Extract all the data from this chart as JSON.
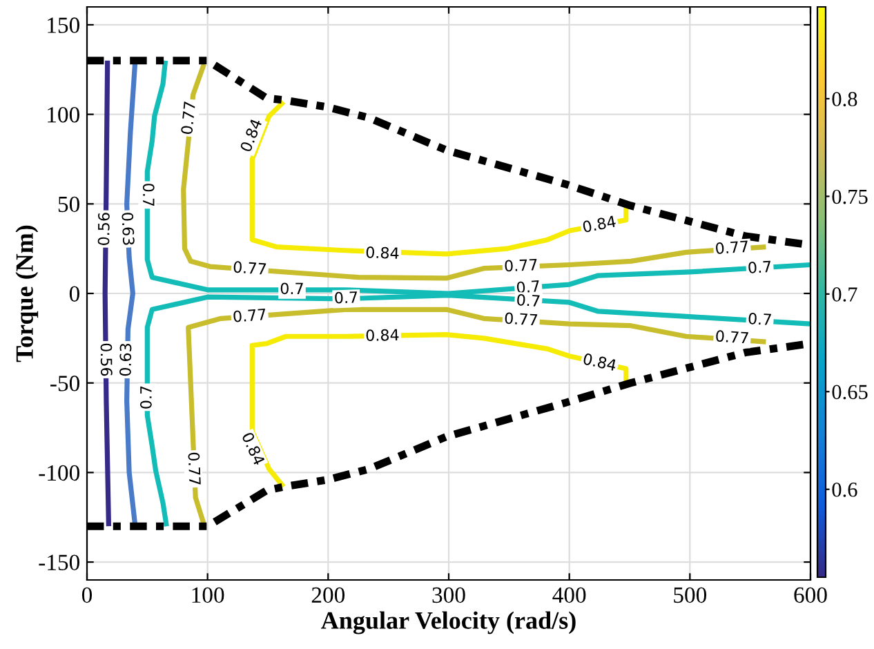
{
  "chart_data": {
    "type": "line",
    "xlabel": "Angular Velocity (rad/s)",
    "ylabel": "Torque (Nm)",
    "xlim": [
      0,
      600
    ],
    "ylim": [
      -160,
      160
    ],
    "xticks": [
      0,
      100,
      200,
      300,
      400,
      500,
      600
    ],
    "yticks": [
      -150,
      -100,
      -50,
      0,
      50,
      100,
      150
    ],
    "grid": true,
    "clim": [
      0.555,
      0.847
    ],
    "cticks": [
      0.6,
      0.65,
      0.7,
      0.75,
      0.8
    ],
    "series": [
      {
        "color": "#352a87",
        "x": [
          17,
          16,
          15,
          16,
          18
        ],
        "values": [
          130,
          60,
          0,
          -60,
          -130
        ]
      },
      {
        "color": "#4a7bc9",
        "x": [
          40,
          36,
          33,
          35,
          38,
          34,
          33,
          35,
          40
        ],
        "values": [
          130,
          90,
          50,
          20,
          0,
          -20,
          -60,
          -100,
          -130
        ]
      },
      {
        "color": "#13bcb7",
        "x": [
          65,
          63,
          56,
          54,
          50,
          50,
          54,
          100,
          214,
          300,
          400,
          424,
          500,
          600
        ],
        "values": [
          130,
          117,
          99,
          85,
          68,
          19,
          9,
          2,
          2,
          0,
          5,
          10,
          12,
          16
        ]
      },
      {
        "color": "#13bcb7",
        "x": [
          66,
          63,
          57,
          54,
          50,
          50,
          54,
          100,
          214,
          300,
          400,
          424,
          500,
          600
        ],
        "values": [
          -130,
          -117,
          -99,
          -85,
          -68,
          -19,
          -9,
          -2,
          -3,
          -1,
          -5,
          -10,
          -13,
          -17
        ]
      },
      {
        "color": "#c8bd2c",
        "x": [
          97,
          88,
          80,
          81,
          86,
          102,
          225,
          298,
          329,
          400,
          451,
          497,
          563
        ],
        "values": [
          128,
          111,
          58,
          25,
          18,
          15,
          9,
          8.5,
          14,
          16,
          18,
          23,
          26
        ]
      },
      {
        "color": "#c8bd2c",
        "x": [
          97,
          90,
          84,
          111,
          214,
          298,
          329,
          400,
          451,
          497,
          563
        ],
        "values": [
          -129,
          -114,
          -19,
          -14,
          -9,
          -9,
          -14,
          -17,
          -18,
          -24,
          -27
        ]
      },
      {
        "color": "#f5eb05",
        "x": [
          163,
          151,
          137,
          137,
          157,
          214,
          298,
          348,
          382,
          400,
          447,
          447
        ],
        "values": [
          107,
          99,
          75,
          30,
          26,
          24,
          22,
          25,
          30,
          35,
          41,
          49
        ]
      },
      {
        "color": "#f5eb05",
        "x": [
          163,
          151,
          137,
          137,
          149,
          165,
          214,
          298,
          329,
          382,
          400,
          447,
          447
        ],
        "values": [
          -108,
          -98,
          -77,
          -29,
          -28,
          -24,
          -24,
          -23,
          -25,
          -31,
          -35,
          -42,
          -50
        ]
      },
      {
        "color": "#000000",
        "line_style": "dashed",
        "x": [
          0,
          100,
          149,
          163,
          200,
          234,
          298,
          397,
          451,
          546,
          600
        ],
        "values": [
          130,
          130,
          109,
          108,
          104,
          98,
          80,
          61,
          49,
          32,
          27
        ]
      },
      {
        "color": "#000000",
        "line_style": "dashed",
        "x": [
          0,
          100,
          149,
          163,
          200,
          234,
          298,
          397,
          451,
          546,
          600
        ],
        "values": [
          -130,
          -130,
          -110,
          -108,
          -104,
          -98,
          -80,
          -61,
          -50,
          -33,
          -28
        ]
      }
    ],
    "annotations": [
      {
        "text": "0.56",
        "x": 15,
        "y": 36
      },
      {
        "text": "0.56",
        "x": 15,
        "y": -37
      },
      {
        "text": "0.63",
        "x": 33,
        "y": 36
      },
      {
        "text": "0.63",
        "x": 33,
        "y": -37
      },
      {
        "text": "0.7",
        "x": 50,
        "y": 55
      },
      {
        "text": "0.7",
        "x": 50,
        "y": -58
      },
      {
        "text": "0.77",
        "x": 85,
        "y": 98
      },
      {
        "text": "0.77",
        "x": 88,
        "y": -98
      },
      {
        "text": "0.84",
        "x": 137,
        "y": 88
      },
      {
        "text": "0.84",
        "x": 137,
        "y": -87
      },
      {
        "text": "0.77",
        "x": 135,
        "y": 13.5
      },
      {
        "text": "0.77",
        "x": 135,
        "y": -13
      },
      {
        "text": "0.7",
        "x": 170,
        "y": 2
      },
      {
        "text": "0.7",
        "x": 215,
        "y": -3
      },
      {
        "text": "0.84",
        "x": 245,
        "y": 22
      },
      {
        "text": "0.84",
        "x": 245,
        "y": -24
      },
      {
        "text": "0.77",
        "x": 360,
        "y": 15
      },
      {
        "text": "0.77",
        "x": 360,
        "y": -15
      },
      {
        "text": "0.7",
        "x": 366,
        "y": 3
      },
      {
        "text": "0.7",
        "x": 366,
        "y": -4.6
      },
      {
        "text": "0.84",
        "x": 425,
        "y": 38
      },
      {
        "text": "0.84",
        "x": 425,
        "y": -39
      },
      {
        "text": "0.77",
        "x": 535,
        "y": 25
      },
      {
        "text": "0.77",
        "x": 535,
        "y": -25
      },
      {
        "text": "0.7",
        "x": 558,
        "y": 14
      },
      {
        "text": "0.7",
        "x": 558,
        "y": -15
      }
    ]
  }
}
